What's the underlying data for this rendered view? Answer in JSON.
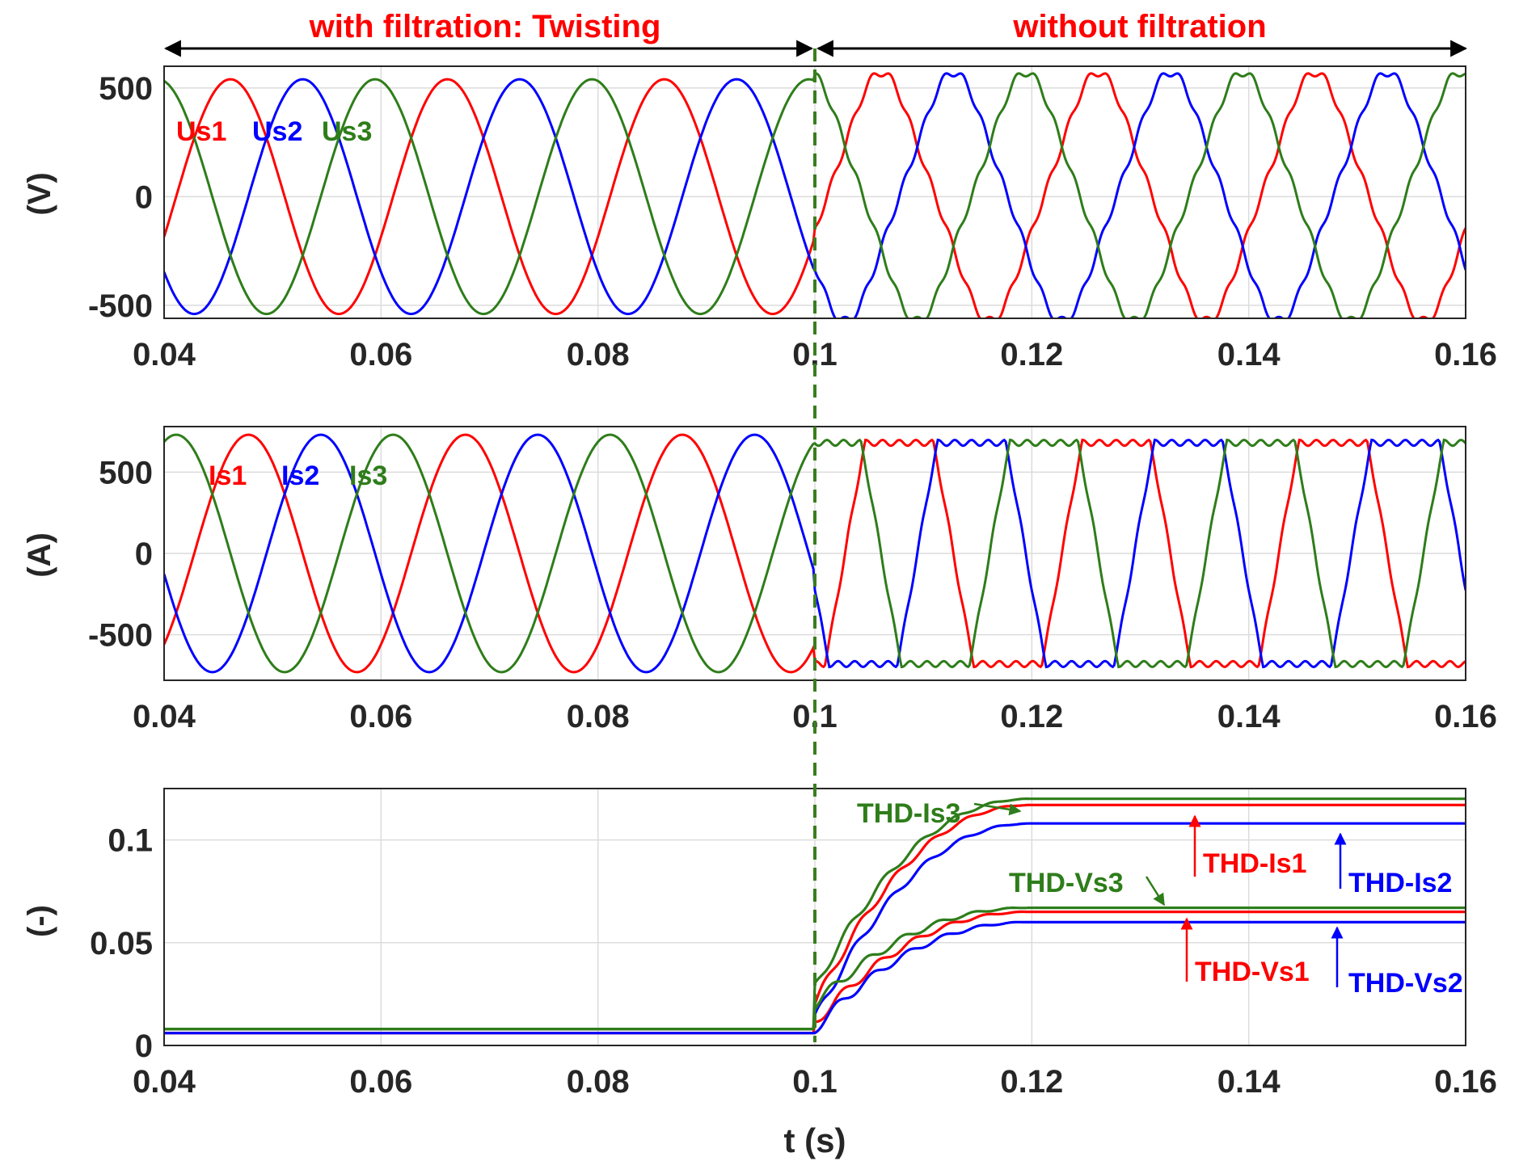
{
  "figure": {
    "region_left": "with filtration: Twisting",
    "region_right": "without filtration",
    "switch_time": 0.1,
    "xlabel": "t (s)"
  },
  "colors": {
    "phase1": "#ff0000",
    "phase2": "#0000ff",
    "phase3": "#2e7d1a",
    "divider": "#3a7d1e",
    "text": "#262626"
  },
  "chart_data": [
    {
      "type": "line",
      "id": "voltage",
      "title": "",
      "xlabel": "",
      "ylabel": "(V)",
      "xlim": [
        0.04,
        0.16
      ],
      "ylim": [
        -560,
        600
      ],
      "xticks": [
        0.04,
        0.06,
        0.08,
        0.1,
        0.12,
        0.14,
        0.16
      ],
      "xtick_labels": [
        "0.04",
        "0.06",
        "0.08",
        "0.1",
        "0.12",
        "0.14",
        "0.16"
      ],
      "yticks": [
        -500,
        0,
        500
      ],
      "ytick_labels": [
        "-500",
        "0",
        "500"
      ],
      "frequency_hz": 50,
      "amplitude": 540,
      "series": [
        {
          "name": "Us1",
          "phase_deg": -20,
          "color": "#ff0000"
        },
        {
          "name": "Us2",
          "phase_deg": -140,
          "color": "#0000ff"
        },
        {
          "name": "Us3",
          "phase_deg": 100,
          "color": "#2e7d1a"
        }
      ],
      "after_switch": {
        "shape": "distorted",
        "flatten": 0.18
      }
    },
    {
      "type": "line",
      "id": "current",
      "title": "",
      "xlabel": "",
      "ylabel": "(A)",
      "xlim": [
        0.04,
        0.16
      ],
      "ylim": [
        -780,
        780
      ],
      "xticks": [
        0.04,
        0.06,
        0.08,
        0.1,
        0.12,
        0.14,
        0.16
      ],
      "xtick_labels": [
        "0.04",
        "0.06",
        "0.08",
        "0.1",
        "0.12",
        "0.14",
        "0.16"
      ],
      "yticks": [
        -500,
        0,
        500
      ],
      "ytick_labels": [
        "-500",
        "0",
        "500"
      ],
      "frequency_hz": 50,
      "amplitude": 730,
      "series": [
        {
          "name": "Is1",
          "phase_deg": -50,
          "color": "#ff0000"
        },
        {
          "name": "Is2",
          "phase_deg": -170,
          "color": "#0000ff"
        },
        {
          "name": "Is3",
          "phase_deg": 70,
          "color": "#2e7d1a"
        }
      ],
      "after_switch": {
        "shape": "quasi-square",
        "level": 680
      }
    },
    {
      "type": "line",
      "id": "thd",
      "title": "",
      "xlabel": "t (s)",
      "ylabel": "(-)",
      "xlim": [
        0.04,
        0.16
      ],
      "ylim": [
        0,
        0.125
      ],
      "xticks": [
        0.04,
        0.06,
        0.08,
        0.1,
        0.12,
        0.14,
        0.16
      ],
      "xtick_labels": [
        "0.04",
        "0.06",
        "0.08",
        "0.1",
        "0.12",
        "0.14",
        "0.16"
      ],
      "yticks": [
        0,
        0.05,
        0.1
      ],
      "ytick_labels": [
        "0",
        "0.05",
        "0.1"
      ],
      "series": [
        {
          "name": "THD-Is1",
          "before": 0.008,
          "final": 0.117,
          "jump": 0.012,
          "color": "#ff0000"
        },
        {
          "name": "THD-Is2",
          "before": 0.008,
          "final": 0.108,
          "jump": 0.005,
          "color": "#0000ff"
        },
        {
          "name": "THD-Is3",
          "before": 0.008,
          "final": 0.12,
          "jump": 0.02,
          "color": "#2e7d1a"
        },
        {
          "name": "THD-Vs1",
          "before": 0.006,
          "final": 0.065,
          "jump": 0.005,
          "color": "#ff0000"
        },
        {
          "name": "THD-Vs2",
          "before": 0.006,
          "final": 0.06,
          "jump": 0.002,
          "color": "#0000ff"
        },
        {
          "name": "THD-Vs3",
          "before": 0.008,
          "final": 0.067,
          "jump": 0.012,
          "color": "#2e7d1a"
        }
      ],
      "annotations": [
        "THD-Is3",
        "THD-Is1",
        "THD-Is2",
        "THD-Vs3",
        "THD-Vs1",
        "THD-Vs2"
      ]
    }
  ]
}
